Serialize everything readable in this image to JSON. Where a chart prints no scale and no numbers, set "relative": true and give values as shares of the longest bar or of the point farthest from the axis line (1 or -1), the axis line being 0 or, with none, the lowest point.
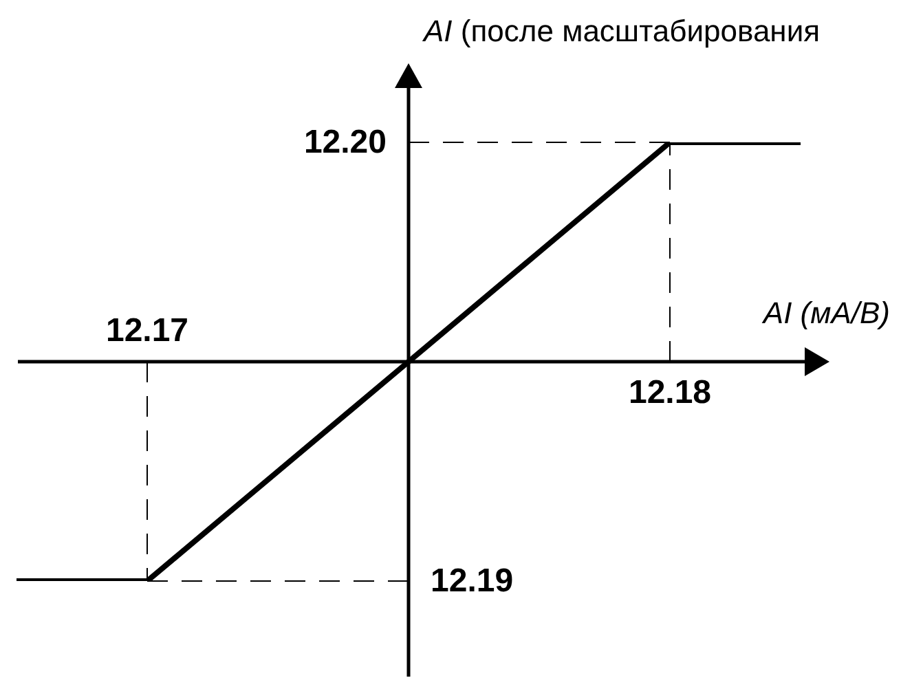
{
  "chart_data": {
    "type": "line",
    "xlabel": "AI (мА/В)",
    "ylabel": "AI (после масштабирования",
    "categories": [
      null,
      "12.17",
      null,
      null,
      null,
      "12.18",
      null
    ],
    "values": [
      -1,
      -1,
      -0.5,
      0,
      0.5,
      1,
      1
    ],
    "color": "#000000",
    "marker": "none",
    "line_style": "solid",
    "relative": true,
    "annotations": [
      "12.20",
      "12.19"
    ]
  }
}
